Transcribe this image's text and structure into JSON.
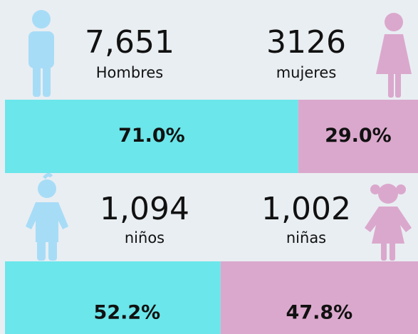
{
  "sections": [
    {
      "left": {
        "count": "7,651",
        "label": "Hombres"
      },
      "right": {
        "count": "3126",
        "label": "mujeres"
      },
      "bar": {
        "values": [
          71.0,
          29.0
        ],
        "value_labels": [
          "71.0%",
          "29.0%"
        ],
        "colors": [
          "#6be6ea",
          "#dba8cd"
        ]
      }
    },
    {
      "left": {
        "count": "1,094",
        "label": "niños"
      },
      "right": {
        "count": "1,002",
        "label": "niñas"
      },
      "bar": {
        "values": [
          52.2,
          47.8
        ],
        "value_labels": [
          "52.2%",
          "47.8%"
        ],
        "colors": [
          "#6be6ea",
          "#dba8cd"
        ]
      }
    }
  ]
}
